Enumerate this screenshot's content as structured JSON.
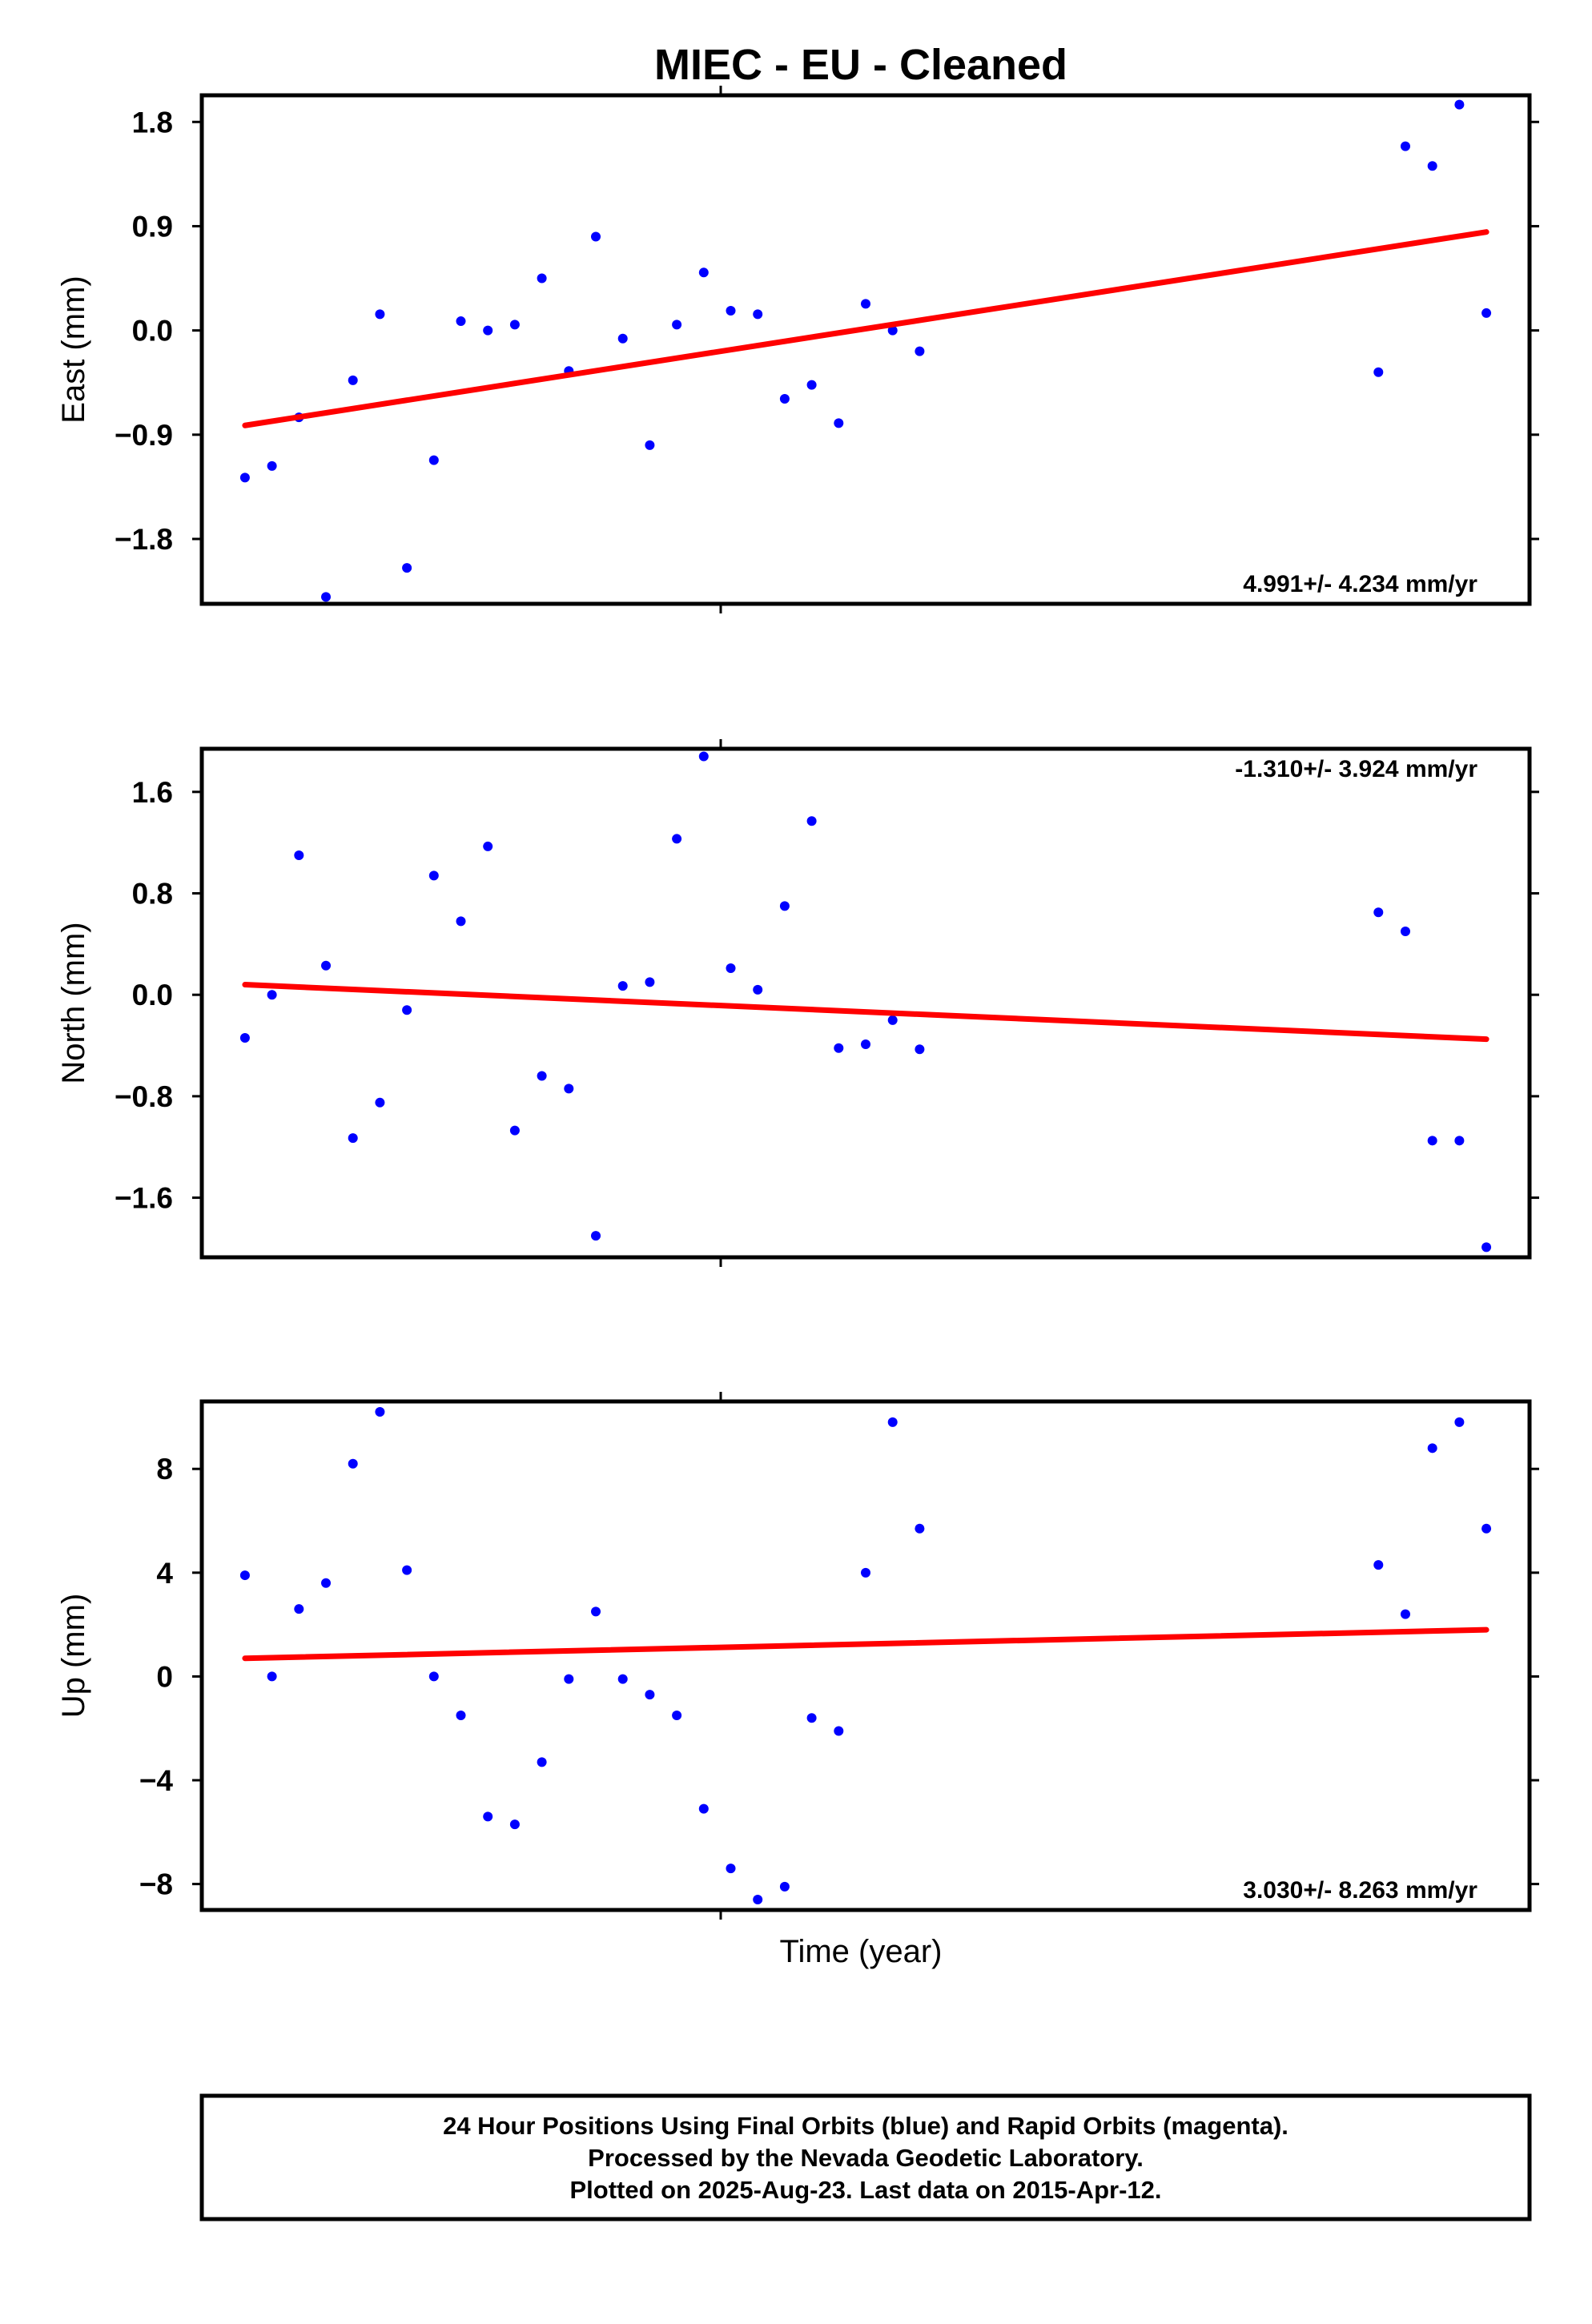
{
  "title": "MIEC  - EU - Cleaned",
  "xlabel": "Time (year)",
  "footer": {
    "line1": "24 Hour Positions Using Final Orbits (blue) and Rapid Orbits (magenta).",
    "line2": "Processed by the Nevada Geodetic Laboratory.",
    "line3": "Plotted on 2025-Aug-23. Last data on 2015-Apr-12."
  },
  "colors": {
    "points": "#0000ff",
    "trend": "#ff0000",
    "frame": "#000000"
  },
  "chart_data": [
    {
      "type": "scatter",
      "name": "east",
      "ylabel": "East (mm)",
      "rate_text": "4.991+/- 4.234 mm/yr",
      "rate_position": "bottom-right",
      "ylim": [
        -2.36,
        2.03
      ],
      "yticks": [
        1.8,
        0.9,
        0.0,
        -0.9,
        -1.8
      ],
      "ytick_labels": [
        "1.8",
        "0.9",
        "0.0",
        "−0.9",
        "−1.8"
      ],
      "points": [
        [
          0.0,
          -1.27
        ],
        [
          0.5,
          -1.17
        ],
        [
          1.0,
          -0.75
        ],
        [
          1.5,
          -2.3
        ],
        [
          2.0,
          -0.43
        ],
        [
          2.5,
          0.14
        ],
        [
          3.0,
          -2.05
        ],
        [
          3.5,
          -1.12
        ],
        [
          4.0,
          0.08
        ],
        [
          4.5,
          0.0
        ],
        [
          5.0,
          0.05
        ],
        [
          5.5,
          0.45
        ],
        [
          6.0,
          -0.35
        ],
        [
          6.5,
          0.81
        ],
        [
          7.0,
          -0.07
        ],
        [
          7.5,
          -0.99
        ],
        [
          8.0,
          0.05
        ],
        [
          8.5,
          0.5
        ],
        [
          9.0,
          0.17
        ],
        [
          9.5,
          0.14
        ],
        [
          10.0,
          -0.59
        ],
        [
          10.5,
          -0.47
        ],
        [
          11.0,
          -0.8
        ],
        [
          11.5,
          0.23
        ],
        [
          12.0,
          0.0
        ],
        [
          12.5,
          -0.18
        ],
        [
          21.0,
          -0.36
        ],
        [
          21.5,
          1.59
        ],
        [
          22.0,
          1.42
        ],
        [
          22.5,
          1.95
        ],
        [
          23.0,
          0.15
        ]
      ],
      "trend": [
        [
          0.0,
          -0.82
        ],
        [
          23.0,
          0.85
        ]
      ]
    },
    {
      "type": "scatter",
      "name": "north",
      "ylabel": "North (mm)",
      "rate_text": "-1.310+/- 3.924 mm/yr",
      "rate_position": "top-right",
      "ylim": [
        -2.07,
        1.94
      ],
      "yticks": [
        1.6,
        0.8,
        0.0,
        -0.8,
        -1.6
      ],
      "ytick_labels": [
        "1.6",
        "0.8",
        "0.0",
        "−0.8",
        "−1.6"
      ],
      "points": [
        [
          0.0,
          -0.34
        ],
        [
          0.5,
          0.0
        ],
        [
          1.0,
          1.1
        ],
        [
          1.5,
          0.23
        ],
        [
          2.0,
          -1.13
        ],
        [
          2.5,
          -0.85
        ],
        [
          3.0,
          -0.12
        ],
        [
          3.5,
          0.94
        ],
        [
          4.0,
          0.58
        ],
        [
          4.5,
          1.17
        ],
        [
          5.0,
          -1.07
        ],
        [
          5.5,
          -0.64
        ],
        [
          6.0,
          -0.74
        ],
        [
          6.5,
          -1.9
        ],
        [
          7.0,
          0.07
        ],
        [
          7.5,
          0.1
        ],
        [
          8.0,
          1.23
        ],
        [
          8.5,
          1.88
        ],
        [
          9.0,
          0.21
        ],
        [
          9.5,
          0.04
        ],
        [
          10.0,
          0.7
        ],
        [
          10.5,
          1.37
        ],
        [
          11.0,
          -0.42
        ],
        [
          11.5,
          -0.39
        ],
        [
          12.0,
          -0.2
        ],
        [
          12.5,
          -0.43
        ],
        [
          21.0,
          0.65
        ],
        [
          21.5,
          0.5
        ],
        [
          22.0,
          -1.15
        ],
        [
          22.5,
          -1.15
        ],
        [
          23.0,
          -1.99
        ]
      ],
      "trend": [
        [
          0.0,
          0.08
        ],
        [
          23.0,
          -0.35
        ]
      ]
    },
    {
      "type": "scatter",
      "name": "up",
      "ylabel": "Up (mm)",
      "rate_text": "3.030+/- 8.263 mm/yr",
      "rate_position": "bottom-right",
      "ylim": [
        -9.0,
        10.6
      ],
      "yticks": [
        8,
        4,
        0,
        -4,
        -8
      ],
      "ytick_labels": [
        "8",
        "4",
        "0",
        "−4",
        "−8"
      ],
      "points": [
        [
          0.0,
          3.9
        ],
        [
          0.5,
          0.0
        ],
        [
          1.0,
          2.6
        ],
        [
          1.5,
          3.6
        ],
        [
          2.0,
          8.2
        ],
        [
          2.5,
          10.2
        ],
        [
          3.0,
          4.1
        ],
        [
          3.5,
          0.0
        ],
        [
          4.0,
          -1.5
        ],
        [
          4.5,
          -5.4
        ],
        [
          5.0,
          -5.7
        ],
        [
          5.5,
          -3.3
        ],
        [
          6.0,
          -0.1
        ],
        [
          6.5,
          2.5
        ],
        [
          7.0,
          -0.1
        ],
        [
          7.5,
          -0.7
        ],
        [
          8.0,
          -1.5
        ],
        [
          8.5,
          -5.1
        ],
        [
          9.0,
          -7.4
        ],
        [
          9.5,
          -8.6
        ],
        [
          10.0,
          -8.1
        ],
        [
          10.5,
          -1.6
        ],
        [
          11.0,
          -2.1
        ],
        [
          11.5,
          4.0
        ],
        [
          12.0,
          9.8
        ],
        [
          12.5,
          5.7
        ],
        [
          21.0,
          4.3
        ],
        [
          21.5,
          2.4
        ],
        [
          22.0,
          8.8
        ],
        [
          22.5,
          9.8
        ],
        [
          23.0,
          5.7
        ]
      ],
      "trend": [
        [
          0.0,
          0.7
        ],
        [
          23.0,
          1.8
        ]
      ]
    }
  ]
}
